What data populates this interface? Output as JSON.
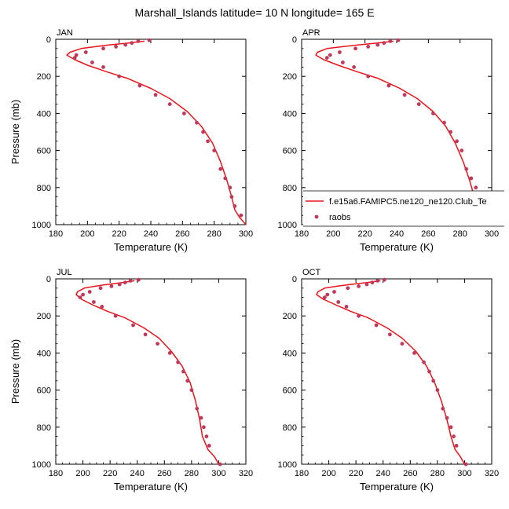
{
  "title": "Marshall_Islands  latitude= 10 N longitude= 165 E",
  "colors": {
    "model": "#e8161c",
    "obs": "#c0395a",
    "axis": "#000000"
  },
  "legend": {
    "model_label": "f.e15a6.FAMIPC5.ne120_ne120.Club_Te",
    "obs_label": "raobs"
  },
  "chart_data": [
    {
      "type": "line",
      "panel_label": "JAN",
      "xlabel": "Temperature (K)",
      "ylabel": "Pressure (mb)",
      "xlim": [
        180,
        300
      ],
      "xticks": [
        180,
        200,
        220,
        240,
        260,
        280,
        300
      ],
      "ylim": [
        1000,
        0
      ],
      "yticks": [
        0,
        200,
        400,
        600,
        800,
        1000
      ],
      "series": [
        {
          "name": "f.e15a6.FAMIPC5.ne120_ne120.Club_Te",
          "kind": "line",
          "x": [
            236,
            226,
            214,
            205,
            196,
            189,
            187,
            192,
            200,
            212,
            225,
            240,
            252,
            263,
            272,
            279,
            284,
            288,
            291,
            293,
            296,
            300
          ],
          "y": [
            10,
            20,
            30,
            40,
            50,
            70,
            85,
            110,
            140,
            175,
            210,
            265,
            320,
            390,
            470,
            560,
            660,
            760,
            850,
            920,
            960,
            1000
          ]
        },
        {
          "name": "raobs",
          "kind": "scatter",
          "x": [
            239,
            232,
            228,
            224,
            218,
            210,
            199,
            193,
            192,
            203,
            210,
            220,
            233,
            243,
            252,
            261,
            269,
            273,
            276,
            280,
            284,
            287,
            290,
            291,
            293,
            297
          ],
          "y": [
            5,
            10,
            20,
            30,
            40,
            50,
            70,
            85,
            100,
            125,
            150,
            200,
            250,
            300,
            350,
            400,
            450,
            500,
            550,
            600,
            700,
            750,
            800,
            850,
            900,
            950
          ]
        }
      ]
    },
    {
      "type": "line",
      "panel_label": "APR",
      "xlabel": "Temperature (K)",
      "ylabel": "",
      "xlim": [
        180,
        300
      ],
      "xticks": [
        180,
        200,
        220,
        240,
        260,
        280,
        300
      ],
      "ylim": [
        1000,
        0
      ],
      "yticks": [
        0,
        200,
        400,
        600,
        800,
        1000
      ],
      "series": [
        {
          "name": "f.e15a6.FAMIPC5.ne120_ne120.Club_Te",
          "kind": "line",
          "x": [
            238,
            228,
            216,
            206,
            196,
            190,
            189,
            194,
            203,
            215,
            228,
            242,
            253,
            263,
            271,
            277,
            282,
            286,
            289,
            292,
            296,
            300
          ],
          "y": [
            10,
            20,
            30,
            40,
            50,
            70,
            85,
            110,
            140,
            175,
            210,
            265,
            320,
            390,
            470,
            560,
            660,
            760,
            850,
            920,
            960,
            1000
          ]
        },
        {
          "name": "raobs",
          "kind": "scatter",
          "x": [
            241,
            236,
            232,
            228,
            222,
            214,
            204,
            198,
            196,
            206,
            213,
            222,
            235,
            245,
            254,
            263,
            270,
            274,
            278,
            281,
            284,
            287,
            290,
            292,
            294,
            299
          ],
          "y": [
            5,
            10,
            20,
            30,
            40,
            50,
            70,
            85,
            100,
            125,
            150,
            200,
            250,
            300,
            350,
            400,
            450,
            500,
            550,
            600,
            700,
            750,
            800,
            850,
            900,
            950
          ]
        }
      ]
    },
    {
      "type": "line",
      "panel_label": "JUL",
      "xlabel": "Temperature (K)",
      "ylabel": "Pressure (mb)",
      "xlim": [
        180,
        320
      ],
      "xticks": [
        180,
        200,
        220,
        240,
        260,
        280,
        300,
        320
      ],
      "ylim": [
        1000,
        0
      ],
      "yticks": [
        0,
        200,
        400,
        600,
        800,
        1000
      ],
      "series": [
        {
          "name": "f.e15a6.FAMIPC5.ne120_ne120.Club_Te",
          "kind": "line",
          "x": [
            238,
            229,
            218,
            209,
            201,
            196,
            195,
            199,
            207,
            218,
            231,
            245,
            256,
            265,
            273,
            279,
            283,
            286,
            288,
            292,
            297,
            300
          ],
          "y": [
            10,
            20,
            30,
            40,
            50,
            70,
            85,
            110,
            140,
            175,
            210,
            265,
            320,
            390,
            470,
            560,
            660,
            760,
            850,
            920,
            960,
            1000
          ]
        },
        {
          "name": "raobs",
          "kind": "scatter",
          "x": [
            241,
            235,
            231,
            227,
            221,
            213,
            205,
            200,
            198,
            208,
            214,
            224,
            237,
            246,
            255,
            264,
            270,
            274,
            277,
            280,
            284,
            287,
            289,
            291,
            293,
            301
          ],
          "y": [
            5,
            10,
            20,
            30,
            40,
            50,
            70,
            85,
            100,
            125,
            150,
            200,
            250,
            300,
            350,
            400,
            450,
            500,
            550,
            600,
            700,
            750,
            800,
            850,
            900,
            1000
          ]
        }
      ]
    },
    {
      "type": "line",
      "panel_label": "OCT",
      "xlabel": "Temperature (K)",
      "ylabel": "",
      "xlim": [
        180,
        320
      ],
      "xticks": [
        180,
        200,
        220,
        240,
        260,
        280,
        300,
        320
      ],
      "ylim": [
        1000,
        0
      ],
      "yticks": [
        0,
        200,
        400,
        600,
        800,
        1000
      ],
      "series": [
        {
          "name": "f.e15a6.FAMIPC5.ne120_ne120.Club_Te",
          "kind": "line",
          "x": [
            238,
            228,
            216,
            206,
            197,
            192,
            191,
            196,
            205,
            216,
            229,
            243,
            254,
            264,
            272,
            278,
            283,
            287,
            290,
            293,
            297,
            300
          ],
          "y": [
            10,
            20,
            30,
            40,
            50,
            70,
            85,
            110,
            140,
            175,
            210,
            265,
            320,
            390,
            470,
            560,
            660,
            760,
            850,
            920,
            960,
            1000
          ]
        },
        {
          "name": "raobs",
          "kind": "scatter",
          "x": [
            241,
            236,
            232,
            228,
            222,
            214,
            204,
            199,
            197,
            207,
            213,
            222,
            235,
            245,
            254,
            263,
            270,
            274,
            277,
            280,
            284,
            287,
            290,
            292,
            294,
            301
          ],
          "y": [
            5,
            10,
            20,
            30,
            40,
            50,
            70,
            85,
            100,
            125,
            150,
            200,
            250,
            300,
            350,
            400,
            450,
            500,
            550,
            600,
            700,
            750,
            800,
            850,
            900,
            1000
          ]
        }
      ]
    }
  ]
}
